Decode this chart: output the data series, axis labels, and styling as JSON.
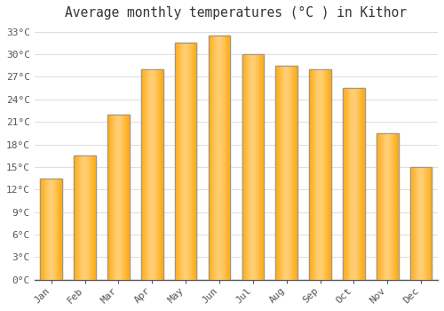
{
  "title": "Average monthly temperatures (°C ) in Kithor",
  "months": [
    "Jan",
    "Feb",
    "Mar",
    "Apr",
    "May",
    "Jun",
    "Jul",
    "Aug",
    "Sep",
    "Oct",
    "Nov",
    "Dec"
  ],
  "values": [
    13.5,
    16.5,
    22.0,
    28.0,
    31.5,
    32.5,
    30.0,
    28.5,
    28.0,
    25.5,
    19.5,
    15.0
  ],
  "bar_color": "#FFA500",
  "bar_edge_color": "#999999",
  "background_color": "#ffffff",
  "grid_color": "#dddddd",
  "text_color": "#555555",
  "ylim": [
    0,
    34
  ],
  "yticks": [
    0,
    3,
    6,
    9,
    12,
    15,
    18,
    21,
    24,
    27,
    30,
    33
  ],
  "title_fontsize": 10.5,
  "tick_fontsize": 8,
  "font_family": "monospace"
}
